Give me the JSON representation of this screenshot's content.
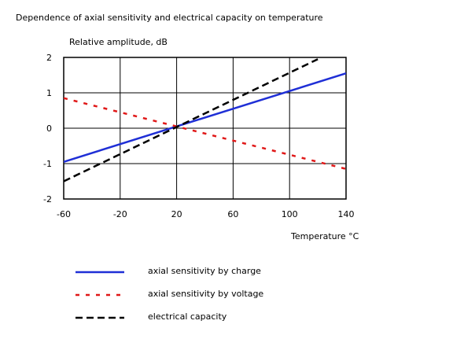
{
  "chart_data": {
    "type": "line",
    "title": "Dependence of axial sensitivity and electrical capacity on temperature",
    "y_label": "Relative amplitude, dB",
    "x_label": "Temperature °C",
    "xlim": [
      -60,
      140
    ],
    "xticks": [
      -60,
      -20,
      20,
      60,
      100,
      140
    ],
    "ylim": [
      -2,
      2
    ],
    "yticks": [
      -2,
      -1,
      0,
      1,
      2
    ],
    "grid": true,
    "series": [
      {
        "name": "axial sensitivity by charge",
        "color": "#1f2fd6",
        "dash": "solid",
        "x": [
          -60,
          140
        ],
        "values": [
          -0.95,
          1.55
        ]
      },
      {
        "name": "axial sensitivity by voltage",
        "color": "#e01818",
        "dash": "dashed",
        "x": [
          -60,
          140
        ],
        "values": [
          0.85,
          -1.15
        ]
      },
      {
        "name": "electrical capacity",
        "color": "#000000",
        "dash": "dashed",
        "x": [
          -60,
          120
        ],
        "values": [
          -1.5,
          1.95
        ]
      }
    ]
  }
}
